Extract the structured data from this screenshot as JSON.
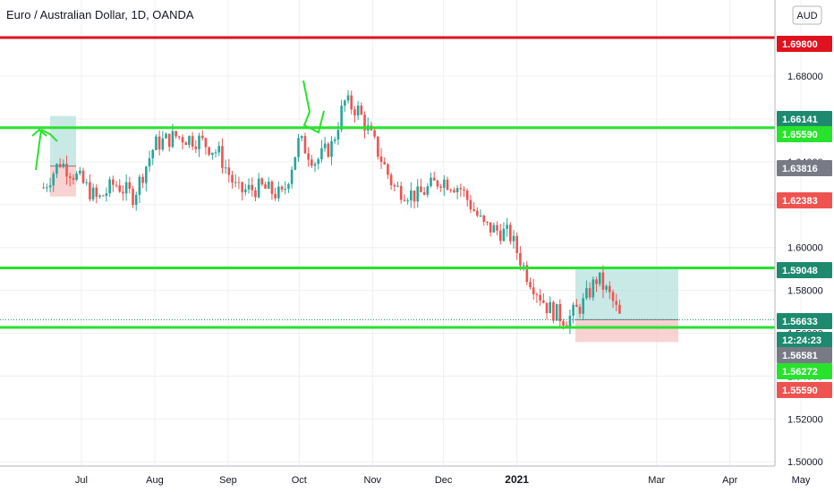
{
  "chart_title": "Euro / Australian Dollar, 1D, OANDA",
  "currency_button": "AUD",
  "chart_data": {
    "type": "candlestick",
    "symbol": "EURAUD",
    "interval": "1D",
    "exchange": "OANDA",
    "x_ticks": [
      "Jul",
      "Aug",
      "Sep",
      "Oct",
      "Nov",
      "Dec",
      "2021",
      "Mar",
      "Apr",
      "May"
    ],
    "y_ticks": [
      "1.68000",
      "1.66000",
      "1.64000",
      "1.62000",
      "1.60000",
      "1.58000",
      "1.56000",
      "1.54000",
      "1.52000",
      "1.50000"
    ],
    "ylim": [
      1.498,
      1.703
    ],
    "approx_close_path": [
      {
        "date": "2020-06-15",
        "close": 1.628
      },
      {
        "date": "2020-06-22",
        "close": 1.64
      },
      {
        "date": "2020-06-30",
        "close": 1.632
      },
      {
        "date": "2020-07-08",
        "close": 1.622
      },
      {
        "date": "2020-07-15",
        "close": 1.63
      },
      {
        "date": "2020-07-23",
        "close": 1.624
      },
      {
        "date": "2020-08-01",
        "close": 1.648
      },
      {
        "date": "2020-08-10",
        "close": 1.652
      },
      {
        "date": "2020-08-20",
        "close": 1.65
      },
      {
        "date": "2020-08-28",
        "close": 1.644
      },
      {
        "date": "2020-09-05",
        "close": 1.626
      },
      {
        "date": "2020-09-15",
        "close": 1.628
      },
      {
        "date": "2020-09-24",
        "close": 1.624
      },
      {
        "date": "2020-10-01",
        "close": 1.65
      },
      {
        "date": "2020-10-08",
        "close": 1.64
      },
      {
        "date": "2020-10-15",
        "close": 1.648
      },
      {
        "date": "2020-10-20",
        "close": 1.668
      },
      {
        "date": "2020-10-26",
        "close": 1.664
      },
      {
        "date": "2020-11-02",
        "close": 1.648
      },
      {
        "date": "2020-11-10",
        "close": 1.628
      },
      {
        "date": "2020-11-20",
        "close": 1.624
      },
      {
        "date": "2020-11-30",
        "close": 1.632
      },
      {
        "date": "2020-12-08",
        "close": 1.628
      },
      {
        "date": "2020-12-18",
        "close": 1.61
      },
      {
        "date": "2020-12-29",
        "close": 1.606
      },
      {
        "date": "2021-01-05",
        "close": 1.588
      },
      {
        "date": "2021-01-14",
        "close": 1.572
      },
      {
        "date": "2021-01-22",
        "close": 1.566
      },
      {
        "date": "2021-01-29",
        "close": 1.574
      },
      {
        "date": "2021-02-04",
        "close": 1.586
      },
      {
        "date": "2021-02-10",
        "close": 1.576
      },
      {
        "date": "2021-02-14",
        "close": 1.566
      }
    ],
    "horizontal_levels": [
      {
        "value": 1.698,
        "color": "#e0121e"
      },
      {
        "value": 1.6559,
        "color": "#27e32c"
      },
      {
        "value": 1.59048,
        "color": "#27e32c"
      },
      {
        "value": 1.5627,
        "color": "#27e32c"
      }
    ],
    "price_tags": [
      {
        "label": "1.69800",
        "value": 1.698,
        "color": "#e0121e"
      },
      {
        "label": "1.66141",
        "value": 1.66141,
        "color": "#1d8a6f"
      },
      {
        "label": "1.65590",
        "value": 1.6559,
        "color": "#27e32c"
      },
      {
        "label": "1.63816",
        "value": 1.63816,
        "color": "#787b86"
      },
      {
        "label": "1.62383",
        "value": 1.62383,
        "color": "#ef5350"
      },
      {
        "label": "1.59048",
        "value": 1.59048,
        "color": "#1d8a6f"
      },
      {
        "label": "1.56633",
        "value": 1.56633,
        "color": "#1d8a6f"
      },
      {
        "label": "12:24:23",
        "value": 1.56,
        "color": "#1d8a6f"
      },
      {
        "label": "1.56581",
        "value": 1.5658,
        "color": "#787b86"
      },
      {
        "label": "1.56272",
        "value": 1.5627,
        "color": "#27e32c"
      },
      {
        "label": "1.55590",
        "value": 1.5559,
        "color": "#ef5350"
      }
    ],
    "positions": [
      {
        "type": "long",
        "entry": 1.638,
        "target": 1.6614,
        "stop": 1.6238
      },
      {
        "type": "long",
        "entry": 1.5663,
        "target": 1.5905,
        "stop": 1.5559
      }
    ],
    "colors": {
      "up": "#26a69a",
      "down": "#ef5350",
      "profit_zone": "#b2dfdb",
      "loss_zone": "#f8c7c7",
      "grid": "#eef0f3"
    }
  }
}
